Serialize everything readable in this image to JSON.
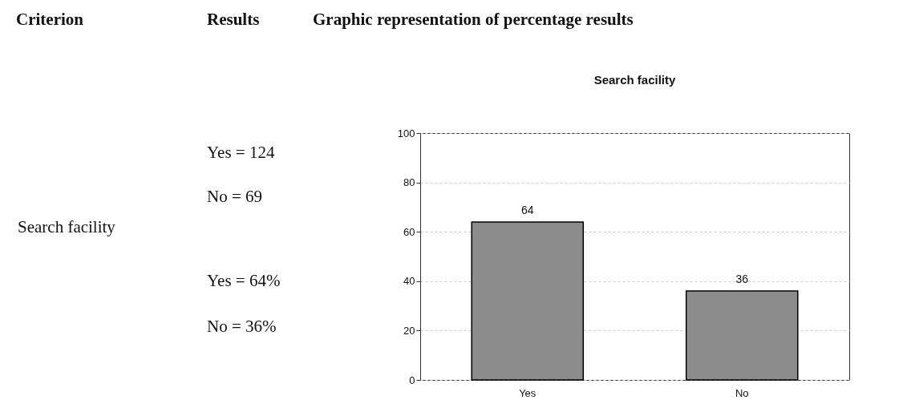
{
  "chart_data": {
    "type": "bar",
    "title": "Search facility",
    "categories": [
      "Yes",
      "No"
    ],
    "values": [
      64,
      36
    ],
    "color": "#8c8c8c",
    "ylim": [
      0,
      100
    ],
    "yticks": [
      0,
      20,
      40,
      60,
      80,
      100
    ],
    "grid": "y",
    "data_labels": true,
    "annotations": [
      "Criterion",
      "Results",
      "Graphic representation of percentage results",
      "Search facility",
      "Yes = 124",
      "No = 69",
      "Yes = 64%",
      "No = 36%"
    ]
  }
}
